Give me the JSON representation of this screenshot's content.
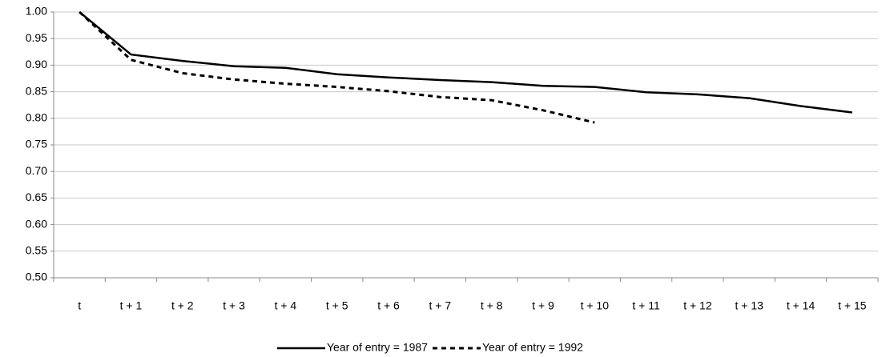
{
  "chart_data": {
    "type": "line",
    "categories": [
      "t",
      "t + 1",
      "t + 2",
      "t + 3",
      "t + 4",
      "t + 5",
      "t + 6",
      "t + 7",
      "t + 8",
      "t + 9",
      "t + 10",
      "t + 11",
      "t + 12",
      "t + 13",
      "t + 14",
      "t + 15"
    ],
    "series": [
      {
        "name": "Year of entry = 1987",
        "color": "#000000",
        "dash": "solid",
        "values": [
          1.0,
          0.92,
          0.908,
          0.898,
          0.895,
          0.883,
          0.877,
          0.872,
          0.868,
          0.861,
          0.859,
          0.849,
          0.845,
          0.838,
          0.823,
          0.811
        ]
      },
      {
        "name": "Year of entry = 1992",
        "color": "#000000",
        "dash": "dashed",
        "values": [
          1.0,
          0.91,
          0.885,
          0.873,
          0.865,
          0.859,
          0.851,
          0.84,
          0.834,
          0.815,
          0.792,
          null,
          null,
          null,
          null,
          null
        ]
      }
    ],
    "ylim": [
      0.5,
      1.0
    ],
    "yticks": [
      {
        "value": 0.5,
        "label": "0.50"
      },
      0.55,
      {
        "value": 0.6,
        "label": "0.60"
      },
      0.65,
      {
        "value": 0.7,
        "label": "0.70"
      },
      0.75,
      {
        "value": 0.8,
        "label": "0.80"
      },
      0.85,
      {
        "value": 0.9,
        "label": "0.90"
      },
      0.95,
      {
        "value": 1.0,
        "label": "1.00"
      }
    ],
    "grid": true,
    "legend": "bottom"
  }
}
